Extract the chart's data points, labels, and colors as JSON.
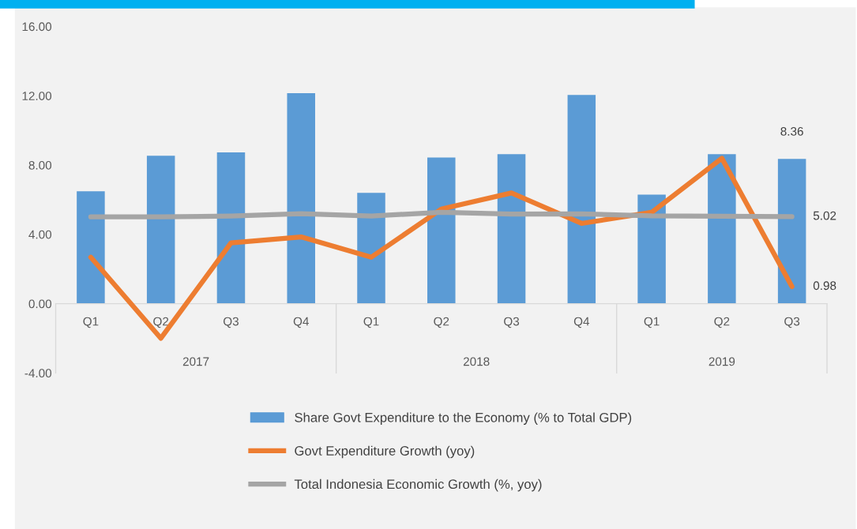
{
  "chart_data": {
    "type": "bar",
    "categories": [
      "Q1",
      "Q2",
      "Q3",
      "Q4",
      "Q1",
      "Q2",
      "Q3",
      "Q4",
      "Q1",
      "Q2",
      "Q3"
    ],
    "series": [
      {
        "name": "Share Govt Expenditure to the Economy (% to Total GDP)",
        "color": "#5b9bd5",
        "values": [
          6.49,
          8.54,
          8.73,
          12.15,
          6.39,
          8.44,
          8.63,
          12.05,
          6.29,
          8.63,
          8.36
        ],
        "value_labels": [
          null,
          null,
          null,
          null,
          null,
          null,
          null,
          null,
          null,
          null,
          "8.36"
        ]
      },
      {
        "name": "Govt Expenditure Growth (yoy)",
        "type": "line",
        "color": "#ed7d31",
        "values": [
          2.68,
          -2.0,
          3.51,
          3.85,
          2.68,
          5.46,
          6.39,
          4.63,
          5.27,
          8.39,
          0.98
        ],
        "value_labels": [
          null,
          null,
          null,
          null,
          null,
          null,
          null,
          null,
          null,
          null,
          "0.98"
        ]
      },
      {
        "name": "Total Indonesia Economic Growth (%, yoy)",
        "type": "line",
        "color": "#a5a5a5",
        "values": [
          5.01,
          5.01,
          5.06,
          5.19,
          5.06,
          5.27,
          5.17,
          5.18,
          5.07,
          5.05,
          5.02
        ],
        "value_labels": [
          null,
          null,
          null,
          null,
          null,
          null,
          null,
          null,
          null,
          null,
          "5.02"
        ]
      }
    ],
    "ylim": [
      -4,
      16
    ],
    "yticks": [
      {
        "value": -4,
        "label": "-4.00"
      },
      {
        "value": 0,
        "label": "0.00"
      },
      {
        "value": 4,
        "label": "4.00"
      },
      {
        "value": 8,
        "label": "8.00"
      },
      {
        "value": 12,
        "label": "12.00"
      },
      {
        "value": 16,
        "label": "16.00"
      }
    ],
    "annotations": [
      "2017",
      "2018",
      "2019"
    ],
    "legend": "bottom",
    "grid": false,
    "marker": "none",
    "line_style": "solid"
  }
}
